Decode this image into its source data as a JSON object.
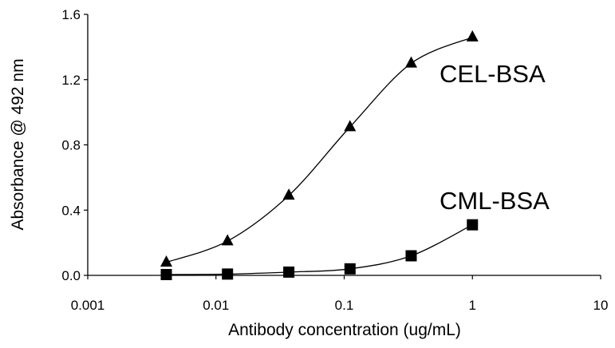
{
  "chart_data": {
    "type": "scatter",
    "title": "",
    "xlabel": "Antibody concentration (ug/mL)",
    "ylabel": "Absorbance @ 492 nm",
    "x_scale": "log",
    "xlim": [
      0.001,
      10
    ],
    "ylim": [
      0,
      1.6
    ],
    "x_ticks": [
      0.001,
      0.01,
      0.1,
      1,
      10
    ],
    "x_tick_labels": [
      "0.001",
      "0.01",
      "0.1",
      "1",
      "10"
    ],
    "y_ticks": [
      0,
      0.4,
      0.8,
      1.2,
      1.6
    ],
    "y_tick_labels": [
      "0.0",
      "0.4",
      "0.8",
      "1.2",
      "1.6"
    ],
    "grid": false,
    "legend": "none",
    "series": [
      {
        "name": "CEL-BSA",
        "marker": "triangle",
        "smoothed_line": true,
        "x": [
          0.0041,
          0.0123,
          0.037,
          0.111,
          0.333,
          1.0
        ],
        "y": [
          0.08,
          0.21,
          0.49,
          0.91,
          1.3,
          1.46
        ]
      },
      {
        "name": "CML-BSA",
        "marker": "square",
        "smoothed_line": true,
        "x": [
          0.0041,
          0.0123,
          0.037,
          0.111,
          0.333,
          1.0
        ],
        "y": [
          0.005,
          0.008,
          0.02,
          0.04,
          0.12,
          0.31
        ]
      }
    ],
    "colors": {
      "marks": "#000000",
      "background": "#ffffff"
    }
  }
}
